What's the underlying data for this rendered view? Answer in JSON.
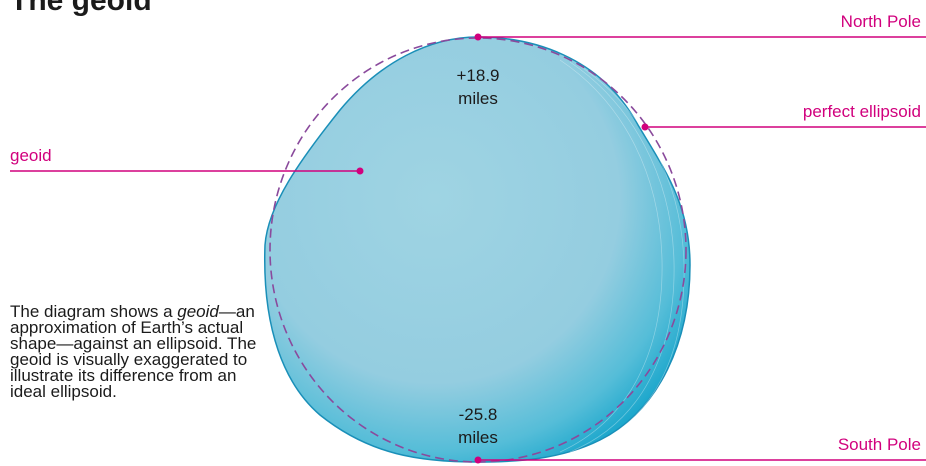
{
  "title": "The geoid",
  "labels": {
    "north_pole": "North Pole",
    "south_pole": "South Pole",
    "perfect_ellipsoid": "perfect ellipsoid",
    "geoid": "geoid"
  },
  "values": {
    "top_value": "+18.9",
    "top_unit": "miles",
    "bottom_value": "-25.8",
    "bottom_unit": "miles"
  },
  "description": {
    "part1": "The diagram shows a ",
    "emphasis": "geoid",
    "part2": "—an approximation of Earth’s actual shape—against an ellipsoid. The geoid is visually exaggerated to illustrate its difference from an ideal ellipsoid."
  },
  "colors": {
    "callout": "#d1007d",
    "geoid_fill": "#97cfe0",
    "geoid_edge": "#1aa6c9",
    "ellipsoid_outline": "#8a4a9c"
  }
}
